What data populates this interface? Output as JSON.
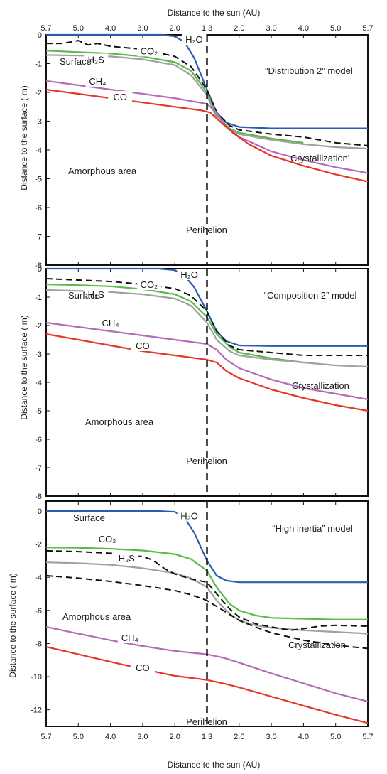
{
  "figure": {
    "top_axis_label": "Distance to the sun (AU)",
    "bottom_axis_label": "Distance to the sun (AU)",
    "x_tick_labels": [
      "5.7",
      "5.0",
      "4.0",
      "3.0",
      "2.0",
      "1.3",
      "2.0",
      "3.0",
      "4.0",
      "5.0",
      "5.7"
    ]
  },
  "chart_data": [
    {
      "type": "line",
      "title": "“Distribution 2” model",
      "ylabel": "Distance to the surface ( m)",
      "ylim": [
        -8,
        0
      ],
      "yticks": [
        0,
        -1,
        -2,
        -3,
        -4,
        -5,
        -6,
        -7,
        -8
      ],
      "x_positions": [
        0,
        1,
        2,
        3,
        4,
        5,
        6,
        7,
        8,
        9,
        10
      ],
      "x_tick_labels": [
        "5.7",
        "5.0",
        "4.0",
        "3.0",
        "2.0",
        "1.3",
        "2.0",
        "3.0",
        "4.0",
        "5.0",
        "5.7"
      ],
      "perihelion_x": 5,
      "annotations": {
        "surface": "Surface",
        "perihelion": "Perihelion",
        "amorphous": "Amorphous area",
        "crystallization": "Crystallization'"
      },
      "series": [
        {
          "name": "H2O",
          "color": "#2a5db0",
          "dashed": false,
          "x": [
            0,
            2,
            3.6,
            4,
            4.3,
            4.6,
            5,
            5.3,
            5.6,
            6,
            7,
            8,
            9,
            10
          ],
          "y": [
            0,
            0,
            0,
            -0.05,
            -0.25,
            -0.8,
            -1.9,
            -2.7,
            -3.05,
            -3.2,
            -3.25,
            -3.25,
            -3.25,
            -3.25
          ]
        },
        {
          "name": "CO2",
          "color": "#5bb94a",
          "dashed": false,
          "x": [
            0,
            1,
            2,
            3,
            4,
            4.5,
            5,
            5.3,
            5.7,
            6,
            7,
            8
          ],
          "y": [
            -0.55,
            -0.6,
            -0.65,
            -0.75,
            -0.95,
            -1.25,
            -2,
            -2.8,
            -3.25,
            -3.4,
            -3.6,
            -3.75
          ]
        },
        {
          "name": "H2S",
          "color": "#a0a0a0",
          "dashed": false,
          "x": [
            0,
            1,
            2,
            3,
            4,
            4.5,
            5,
            5.3,
            5.7,
            6,
            7,
            8,
            9,
            10
          ],
          "y": [
            -0.7,
            -0.72,
            -0.75,
            -0.85,
            -1.05,
            -1.4,
            -2.1,
            -2.9,
            -3.3,
            -3.45,
            -3.65,
            -3.8,
            -3.9,
            -3.95
          ]
        },
        {
          "name": "Crystallization",
          "color": "#111111",
          "dashed": true,
          "x": [
            0,
            0.5,
            1,
            1.3,
            1.6,
            2,
            3,
            4,
            4.5,
            5,
            5.3,
            5.7,
            6,
            7,
            8,
            9,
            10
          ],
          "y": [
            -0.3,
            -0.3,
            -0.2,
            -0.35,
            -0.3,
            -0.4,
            -0.5,
            -0.75,
            -1.1,
            -1.9,
            -2.7,
            -3.15,
            -3.3,
            -3.45,
            -3.55,
            -3.75,
            -3.85
          ]
        },
        {
          "name": "CH4",
          "color": "#b569b8",
          "dashed": false,
          "x": [
            0,
            1,
            2,
            3,
            4,
            5,
            5.3,
            5.6,
            6,
            7,
            8,
            9,
            10
          ],
          "y": [
            -1.6,
            -1.75,
            -1.9,
            -2.05,
            -2.2,
            -2.4,
            -2.7,
            -3.2,
            -3.55,
            -4.05,
            -4.35,
            -4.6,
            -4.8
          ]
        },
        {
          "name": "CO",
          "color": "#e5362a",
          "dashed": false,
          "x": [
            0,
            1,
            2,
            3,
            4,
            4.8,
            5.1,
            5.4,
            5.8,
            6.3,
            7,
            8,
            9,
            10
          ],
          "y": [
            -1.9,
            -2.05,
            -2.2,
            -2.35,
            -2.5,
            -2.62,
            -2.7,
            -3.0,
            -3.4,
            -3.8,
            -4.2,
            -4.55,
            -4.85,
            -5.1
          ]
        }
      ],
      "labels": [
        {
          "text": "H₂O",
          "x": 4.6,
          "y": -0.25
        },
        {
          "text": "CO₂",
          "x": 3.2,
          "y": -0.65
        },
        {
          "text": "H₂S",
          "x": 1.55,
          "y": -0.95
        },
        {
          "text": "CH₄",
          "x": 1.6,
          "y": -1.7
        },
        {
          "text": "CO",
          "x": 2.3,
          "y": -2.25
        }
      ]
    },
    {
      "type": "line",
      "title": "“Composition 2” model",
      "ylabel": "Distance to the surface ( m)",
      "ylim": [
        -8,
        0
      ],
      "yticks": [
        0,
        -1,
        -2,
        -3,
        -4,
        -5,
        -6,
        -7,
        -8
      ],
      "x_positions": [
        0,
        1,
        2,
        3,
        4,
        5,
        6,
        7,
        8,
        9,
        10
      ],
      "x_tick_labels": [
        "5.7",
        "5.0",
        "4.0",
        "3.0",
        "2.0",
        "1.3",
        "2.0",
        "3.0",
        "4.0",
        "5.0",
        "5.7"
      ],
      "perihelion_x": 5,
      "annotations": {
        "surface": "Surface",
        "perihelion": "Perihelion",
        "amorphous": "Amorphous area",
        "crystallization": "Crystallization"
      },
      "series": [
        {
          "name": "H2O",
          "color": "#2a5db0",
          "dashed": false,
          "x": [
            0,
            2,
            3.5,
            4,
            4.3,
            4.6,
            5,
            5.3,
            5.6,
            6,
            7,
            8,
            9,
            10
          ],
          "y": [
            0,
            0,
            0,
            -0.05,
            -0.25,
            -0.65,
            -1.5,
            -2.2,
            -2.55,
            -2.7,
            -2.72,
            -2.72,
            -2.72,
            -2.72
          ]
        },
        {
          "name": "CO2",
          "color": "#5bb94a",
          "dashed": false,
          "x": [
            0,
            1,
            2,
            3,
            4,
            4.5,
            5,
            5.3,
            5.7,
            6,
            7,
            8
          ],
          "y": [
            -0.55,
            -0.58,
            -0.62,
            -0.72,
            -0.9,
            -1.15,
            -1.7,
            -2.3,
            -2.75,
            -2.95,
            -3.15,
            -3.3
          ]
        },
        {
          "name": "H2S",
          "color": "#a0a0a0",
          "dashed": false,
          "x": [
            0,
            1,
            2,
            3,
            4,
            4.5,
            5,
            5.3,
            5.7,
            6,
            7,
            8,
            9,
            10
          ],
          "y": [
            -0.75,
            -0.78,
            -0.82,
            -0.9,
            -1.05,
            -1.3,
            -1.9,
            -2.5,
            -2.9,
            -3.05,
            -3.2,
            -3.3,
            -3.4,
            -3.45
          ]
        },
        {
          "name": "Crystallization",
          "color": "#111111",
          "dashed": true,
          "x": [
            0,
            1,
            2,
            3,
            4,
            4.5,
            5,
            5.3,
            5.7,
            6,
            7,
            8,
            9,
            10
          ],
          "y": [
            -0.35,
            -0.4,
            -0.45,
            -0.55,
            -0.7,
            -0.95,
            -1.5,
            -2.2,
            -2.7,
            -2.85,
            -2.95,
            -3.05,
            -3.05,
            -3.05
          ]
        },
        {
          "name": "CH4",
          "color": "#b569b8",
          "dashed": false,
          "x": [
            0,
            1,
            2,
            3,
            4,
            5,
            5.3,
            5.6,
            6,
            7,
            8,
            9,
            10
          ],
          "y": [
            -1.9,
            -2.05,
            -2.2,
            -2.35,
            -2.5,
            -2.65,
            -2.85,
            -3.2,
            -3.5,
            -3.9,
            -4.2,
            -4.4,
            -4.6
          ]
        },
        {
          "name": "CO",
          "color": "#e5362a",
          "dashed": false,
          "x": [
            0,
            1,
            2,
            3,
            4,
            5,
            5.3,
            5.6,
            6,
            7,
            8,
            9,
            10
          ],
          "y": [
            -2.3,
            -2.5,
            -2.7,
            -2.9,
            -3.05,
            -3.2,
            -3.3,
            -3.6,
            -3.85,
            -4.25,
            -4.55,
            -4.8,
            -5.0
          ]
        }
      ],
      "labels": [
        {
          "text": "H₂O",
          "x": 4.45,
          "y": -0.3
        },
        {
          "text": "CO₂",
          "x": 3.2,
          "y": -0.65
        },
        {
          "text": "H₂S",
          "x": 1.55,
          "y": -1.0
        },
        {
          "text": "CH₄",
          "x": 2.0,
          "y": -2.0
        },
        {
          "text": "CO",
          "x": 3.0,
          "y": -2.8
        }
      ]
    },
    {
      "type": "line",
      "title": "“High inertia” model",
      "ylabel": "Distance to the surface ( m)",
      "ylim": [
        -13,
        0.6
      ],
      "yticks": [
        0,
        -2,
        -4,
        -6,
        -8,
        -10,
        -12
      ],
      "x_positions": [
        0,
        1,
        2,
        3,
        4,
        5,
        6,
        7,
        8,
        9,
        10
      ],
      "x_tick_labels": [
        "5.7",
        "5.0",
        "4.0",
        "3.0",
        "2.0",
        "1.3",
        "2.0",
        "3.0",
        "4.0",
        "5.0",
        "5.7"
      ],
      "perihelion_x": 5,
      "annotations": {
        "surface": "Surface",
        "perihelion": "Perihelion",
        "amorphous": "Amorphous area",
        "crystallization": "Crystallization"
      },
      "series": [
        {
          "name": "H2O",
          "color": "#2a5db0",
          "dashed": false,
          "x": [
            0,
            2,
            3.5,
            4,
            4.3,
            4.6,
            5,
            5.3,
            5.6,
            6,
            7,
            8,
            9,
            10
          ],
          "y": [
            0,
            0,
            0,
            -0.05,
            -0.4,
            -1.3,
            -3.0,
            -3.9,
            -4.2,
            -4.3,
            -4.3,
            -4.3,
            -4.3,
            -4.3
          ]
        },
        {
          "name": "CO2",
          "color": "#5bb94a",
          "dashed": false,
          "x": [
            0,
            1,
            2,
            3,
            4,
            4.5,
            5,
            5.3,
            5.7,
            6,
            6.5,
            7,
            8,
            9,
            10
          ],
          "y": [
            -2.2,
            -2.22,
            -2.28,
            -2.38,
            -2.6,
            -2.9,
            -3.6,
            -4.6,
            -5.6,
            -6.0,
            -6.3,
            -6.45,
            -6.5,
            -6.55,
            -6.55
          ]
        },
        {
          "name": "H2S",
          "color": "#a0a0a0",
          "dashed": false,
          "x": [
            0,
            1,
            2,
            3,
            4,
            4.5,
            5,
            5.3,
            5.7,
            6,
            6.5,
            7,
            8,
            9,
            10
          ],
          "y": [
            -3.1,
            -3.15,
            -3.25,
            -3.45,
            -3.75,
            -4.05,
            -4.6,
            -5.4,
            -6.2,
            -6.6,
            -6.9,
            -7.05,
            -7.2,
            -7.3,
            -7.4
          ]
        },
        {
          "name": "Crystallization",
          "color": "#111111",
          "dashed": true,
          "x": [
            0,
            1,
            2,
            3,
            3.3,
            3.7,
            4,
            4.5,
            5,
            5.3,
            5.7,
            6,
            6.5,
            7,
            7.6,
            8,
            8.5,
            9,
            10
          ],
          "y": [
            -2.4,
            -2.45,
            -2.55,
            -2.75,
            -2.95,
            -3.5,
            -3.8,
            -4.1,
            -4.3,
            -5.0,
            -5.9,
            -6.4,
            -6.8,
            -7.0,
            -7.2,
            -7.1,
            -6.95,
            -6.9,
            -6.95
          ]
        },
        {
          "name": "Crystallization lower",
          "color": "#111111",
          "dashed": true,
          "x": [
            0,
            1,
            2,
            3,
            4,
            4.5,
            5,
            5.5,
            6,
            6.5,
            7,
            8,
            9,
            10
          ],
          "y": [
            -3.9,
            -4.05,
            -4.25,
            -4.5,
            -4.8,
            -5.05,
            -5.4,
            -6.0,
            -6.6,
            -7.0,
            -7.35,
            -7.8,
            -8.1,
            -8.3
          ]
        },
        {
          "name": "CH4",
          "color": "#b569b8",
          "dashed": false,
          "x": [
            0,
            1,
            2,
            3,
            4,
            5,
            5.5,
            6,
            7,
            8,
            9,
            10
          ],
          "y": [
            -7.0,
            -7.4,
            -7.8,
            -8.15,
            -8.45,
            -8.65,
            -8.85,
            -9.15,
            -9.8,
            -10.4,
            -11.0,
            -11.5
          ]
        },
        {
          "name": "CO",
          "color": "#e5362a",
          "dashed": false,
          "x": [
            0,
            1,
            2,
            3,
            4,
            5,
            5.5,
            6,
            7,
            8,
            9,
            10
          ],
          "y": [
            -8.2,
            -8.65,
            -9.1,
            -9.55,
            -9.95,
            -10.2,
            -10.4,
            -10.65,
            -11.2,
            -11.75,
            -12.3,
            -12.8
          ]
        }
      ],
      "labels": [
        {
          "text": "H₂O",
          "x": 4.45,
          "y": -0.45
        },
        {
          "text": "CO₂",
          "x": 1.9,
          "y": -1.85
        },
        {
          "text": "H₂S",
          "x": 2.5,
          "y": -3.0
        },
        {
          "text": "CH₄",
          "x": 2.6,
          "y": -7.8
        },
        {
          "text": "CO",
          "x": 3.0,
          "y": -9.6
        }
      ]
    }
  ]
}
